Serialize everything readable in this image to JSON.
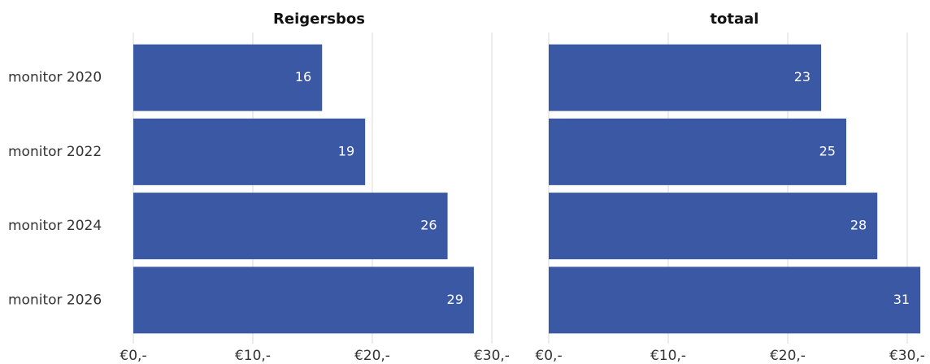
{
  "chart_data": [
    {
      "type": "bar",
      "orientation": "horizontal",
      "title": "Reigersbos",
      "categories": [
        "monitor 2020",
        "monitor 2022",
        "monitor 2024",
        "monitor 2026"
      ],
      "values": [
        15.8,
        19.4,
        26.3,
        28.5
      ],
      "value_labels": [
        "16",
        "19",
        "26",
        "29"
      ],
      "color": "#3a58a4",
      "xlim": [
        0,
        31.5
      ],
      "xticks": [
        {
          "value": 0,
          "label": "€0,-"
        },
        {
          "value": 10,
          "label": "€10,-"
        },
        {
          "value": 20,
          "label": "€20,-"
        },
        {
          "value": 30,
          "label": "€30,-"
        }
      ],
      "grid": true
    },
    {
      "type": "bar",
      "orientation": "horizontal",
      "title": "totaal",
      "values": [
        22.8,
        24.9,
        27.5,
        31.1
      ],
      "value_labels": [
        "23",
        "25",
        "28",
        "31"
      ],
      "color": "#3a58a4",
      "xlim": [
        0,
        31.5
      ],
      "xticks": [
        {
          "value": 0,
          "label": "€0,-"
        },
        {
          "value": 10,
          "label": "€10,-"
        },
        {
          "value": 20,
          "label": "€20,-"
        },
        {
          "value": 30,
          "label": "€30,-"
        }
      ],
      "grid": true
    }
  ]
}
